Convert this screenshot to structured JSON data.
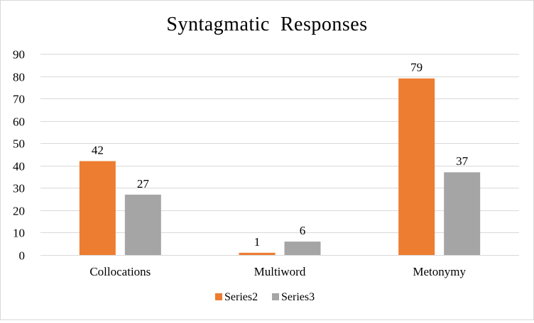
{
  "chart_data": {
    "type": "bar",
    "title": "Syntagmatic  Responses",
    "categories": [
      "Collocations",
      "Multiword",
      "Metonymy"
    ],
    "series": [
      {
        "name": "Series2",
        "values": [
          42,
          1,
          79
        ],
        "color": "#ed7d31"
      },
      {
        "name": "Series3",
        "values": [
          27,
          6,
          37
        ],
        "color": "#a5a5a5"
      }
    ],
    "ylim": [
      0,
      90
    ],
    "yticks": [
      0,
      10,
      20,
      30,
      40,
      50,
      60,
      70,
      80,
      90
    ],
    "grid": true,
    "legend": "bottom",
    "xlabel": "",
    "ylabel": ""
  }
}
